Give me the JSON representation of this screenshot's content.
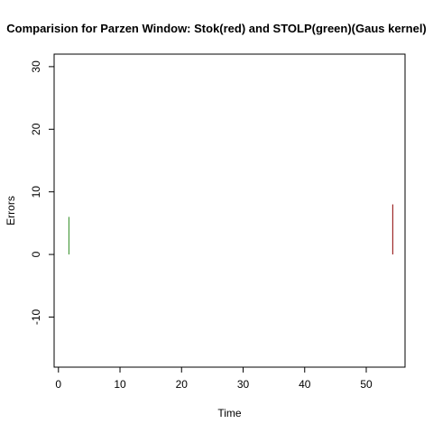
{
  "chart_data": {
    "type": "line",
    "title": "Comparision for Parzen Window: Stok(red) and STOLP(green)(Gaus kernel)",
    "xlabel": "Time",
    "ylabel": "Errors",
    "xlim": [
      -0.7,
      56.3
    ],
    "ylim": [
      -18,
      32
    ],
    "xticks": [
      0,
      10,
      20,
      30,
      40,
      50
    ],
    "yticks": [
      -10,
      0,
      10,
      20,
      30
    ],
    "grid": false,
    "legend": "none",
    "series": [
      {
        "color": "#8B0000",
        "x": [
          54.3,
          54.3
        ],
        "y": [
          0,
          8
        ]
      },
      {
        "color": "#2E8B22",
        "x": [
          1.7,
          1.7
        ],
        "y": [
          0,
          6
        ]
      }
    ]
  }
}
